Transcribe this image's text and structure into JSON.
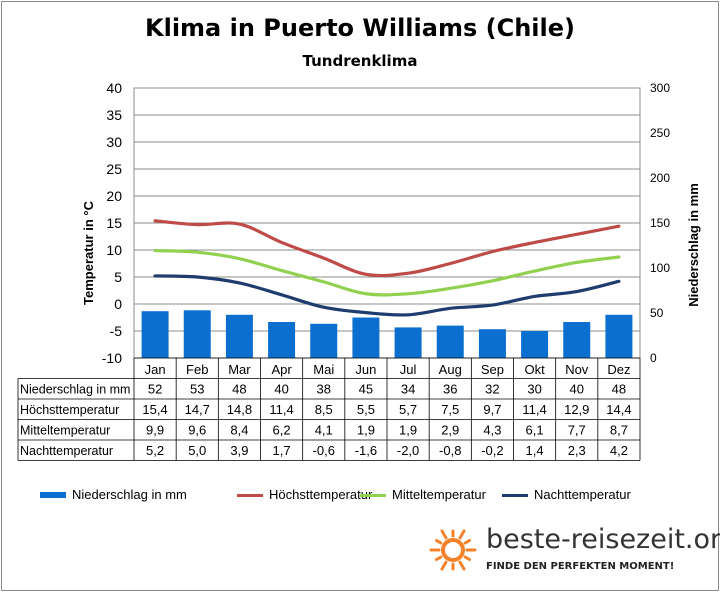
{
  "title": "Klima in Puerto Williams (Chile)",
  "subtitle": "Tundrenklima",
  "colors": {
    "precip": "#0b6fcf",
    "high": "#be4b48",
    "mean": "#92d050",
    "low": "#1f3c6e",
    "grid": "#8c8c8c",
    "sun": "#f5822a"
  },
  "chart_data": {
    "type": "bar+line",
    "categories": [
      "Jan",
      "Feb",
      "Mar",
      "Apr",
      "Mai",
      "Jun",
      "Jul",
      "Aug",
      "Sep",
      "Okt",
      "Nov",
      "Dez"
    ],
    "ylabel_left": "Temperatur in °C",
    "ylabel_right": "Niederschlag in mm",
    "ylim_left": [
      -10,
      40
    ],
    "ylim_right": [
      0,
      300
    ],
    "yticks_left": [
      "40",
      "35",
      "30",
      "25",
      "20",
      "15",
      "10",
      "5",
      "0",
      "-5",
      "-10"
    ],
    "yticks_right": [
      "300",
      "250",
      "200",
      "150",
      "100",
      "50",
      "0"
    ],
    "grid": true,
    "legend_position": "bottom",
    "series": [
      {
        "name": "Niederschlag in mm",
        "kind": "bar",
        "axis": "right",
        "values": [
          52,
          53,
          48,
          40,
          38,
          45,
          34,
          36,
          32,
          30,
          40,
          48
        ],
        "labels": [
          "52",
          "53",
          "48",
          "40",
          "38",
          "45",
          "34",
          "36",
          "32",
          "30",
          "40",
          "48"
        ]
      },
      {
        "name": "Höchsttemperatur",
        "kind": "line",
        "axis": "left",
        "values": [
          15.4,
          14.7,
          14.8,
          11.4,
          8.5,
          5.5,
          5.7,
          7.5,
          9.7,
          11.4,
          12.9,
          14.4
        ],
        "labels": [
          "15,4",
          "14,7",
          "14,8",
          "11,4",
          "8,5",
          "5,5",
          "5,7",
          "7,5",
          "9,7",
          "11,4",
          "12,9",
          "14,4"
        ]
      },
      {
        "name": "Mitteltemperatur",
        "kind": "line",
        "axis": "left",
        "values": [
          9.9,
          9.6,
          8.4,
          6.2,
          4.1,
          1.9,
          1.9,
          2.9,
          4.3,
          6.1,
          7.7,
          8.7
        ],
        "labels": [
          "9,9",
          "9,6",
          "8,4",
          "6,2",
          "4,1",
          "1,9",
          "1,9",
          "2,9",
          "4,3",
          "6,1",
          "7,7",
          "8,7"
        ]
      },
      {
        "name": "Nachttemperatur",
        "kind": "line",
        "axis": "left",
        "values": [
          5.2,
          5.0,
          3.9,
          1.7,
          -0.6,
          -1.6,
          -2.0,
          -0.8,
          -0.2,
          1.4,
          2.3,
          4.2
        ],
        "labels": [
          "5,2",
          "5,0",
          "3,9",
          "1,7",
          "-0,6",
          "-1,6",
          "-2,0",
          "-0,8",
          "-0,2",
          "1,4",
          "2,3",
          "4,2"
        ]
      }
    ]
  },
  "logo": {
    "text": "beste-reisezeit.org",
    "slogan": "FINDE DEN PERFEKTEN MOMENT!"
  }
}
